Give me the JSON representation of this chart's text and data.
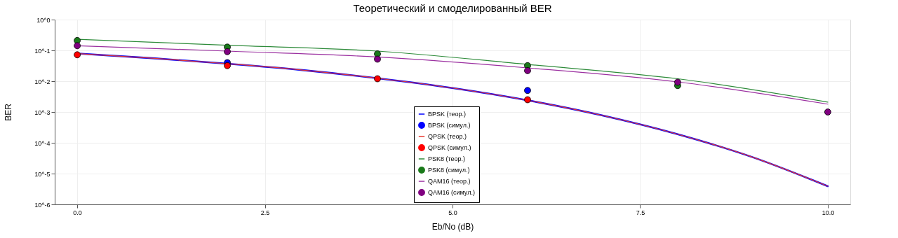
{
  "chart_data": {
    "type": "line",
    "title": "Теоретический и смоделированный BER",
    "xlabel": "Eb/No (dB)",
    "ylabel": "BER",
    "log": "y",
    "grid": true,
    "legend": "bottom",
    "line_style": "solid",
    "xlim": [
      -0.3,
      10.3
    ],
    "xticks": [
      {
        "value": 0,
        "label": "0.0"
      },
      {
        "value": 2.5,
        "label": "2.5"
      },
      {
        "value": 5,
        "label": "5.0"
      },
      {
        "value": 7.5,
        "label": "7.5"
      },
      {
        "value": 10,
        "label": "10.0"
      }
    ],
    "ylim": [
      1e-06,
      1
    ],
    "yticks": [
      {
        "value": 1e-06,
        "label": "10^-6"
      },
      {
        "value": 1e-05,
        "label": "10^-5"
      },
      {
        "value": 0.0001,
        "label": "10^-4"
      },
      {
        "value": 0.001,
        "label": "10^-3"
      },
      {
        "value": 0.01,
        "label": "10^-2"
      },
      {
        "value": 0.1,
        "label": "10^-1"
      },
      {
        "value": 1,
        "label": "10^0"
      }
    ],
    "series": [
      {
        "name": "BPSK (теор.)",
        "color": "#0000ff",
        "marker": "none",
        "x": [
          0,
          1,
          2,
          3,
          4,
          5,
          6,
          7,
          8,
          9,
          10
        ],
        "values": [
          0.079,
          0.056,
          0.037,
          0.023,
          0.0125,
          0.006,
          0.0024,
          0.00077,
          0.00019,
          3.4e-05,
          3.9e-06
        ]
      },
      {
        "name": "BPSK (симул.)",
        "type": "scatter",
        "marker": "circle",
        "color": "#0000ff",
        "x": [
          2,
          6
        ],
        "values": [
          0.04,
          0.005
        ]
      },
      {
        "name": "QPSK (теор.)",
        "color": "#e8392f",
        "marker": "none",
        "x": [
          0,
          1,
          2,
          3,
          4,
          5,
          6,
          7,
          8,
          9,
          10
        ],
        "values": [
          0.079,
          0.056,
          0.037,
          0.023,
          0.0125,
          0.006,
          0.0024,
          0.00077,
          0.00019,
          3.4e-05,
          3.9e-06
        ]
      },
      {
        "name": "QPSK (симул.)",
        "type": "scatter",
        "marker": "circle",
        "color": "#ff0000",
        "x": [
          0,
          2,
          4,
          6
        ],
        "values": [
          0.072,
          0.032,
          0.012,
          0.0025
        ]
      },
      {
        "name": "PSK8 (теор.)",
        "color": "#2e8b3a",
        "marker": "none",
        "x": [
          0,
          2,
          4,
          6,
          8,
          10
        ],
        "values": [
          0.23,
          0.147,
          0.095,
          0.035,
          0.012,
          0.0021
        ]
      },
      {
        "name": "PSK8 (симул.)",
        "type": "scatter",
        "marker": "circle",
        "color": "#1a7a1a",
        "x": [
          0,
          2,
          4,
          6,
          8
        ],
        "values": [
          0.21,
          0.128,
          0.077,
          0.032,
          0.0072
        ]
      },
      {
        "name": "QAM16 (теор.)",
        "color": "#9b30a0",
        "marker": "none",
        "x": [
          0,
          2,
          4,
          6,
          8,
          10
        ],
        "values": [
          0.142,
          0.095,
          0.061,
          0.027,
          0.0095,
          0.0018
        ]
      },
      {
        "name": "QAM16 (симул.)",
        "type": "scatter",
        "marker": "circle",
        "color": "#800080",
        "x": [
          0,
          2,
          4,
          6,
          8,
          10
        ],
        "values": [
          0.142,
          0.091,
          0.052,
          0.022,
          0.0093,
          0.001
        ]
      }
    ]
  }
}
